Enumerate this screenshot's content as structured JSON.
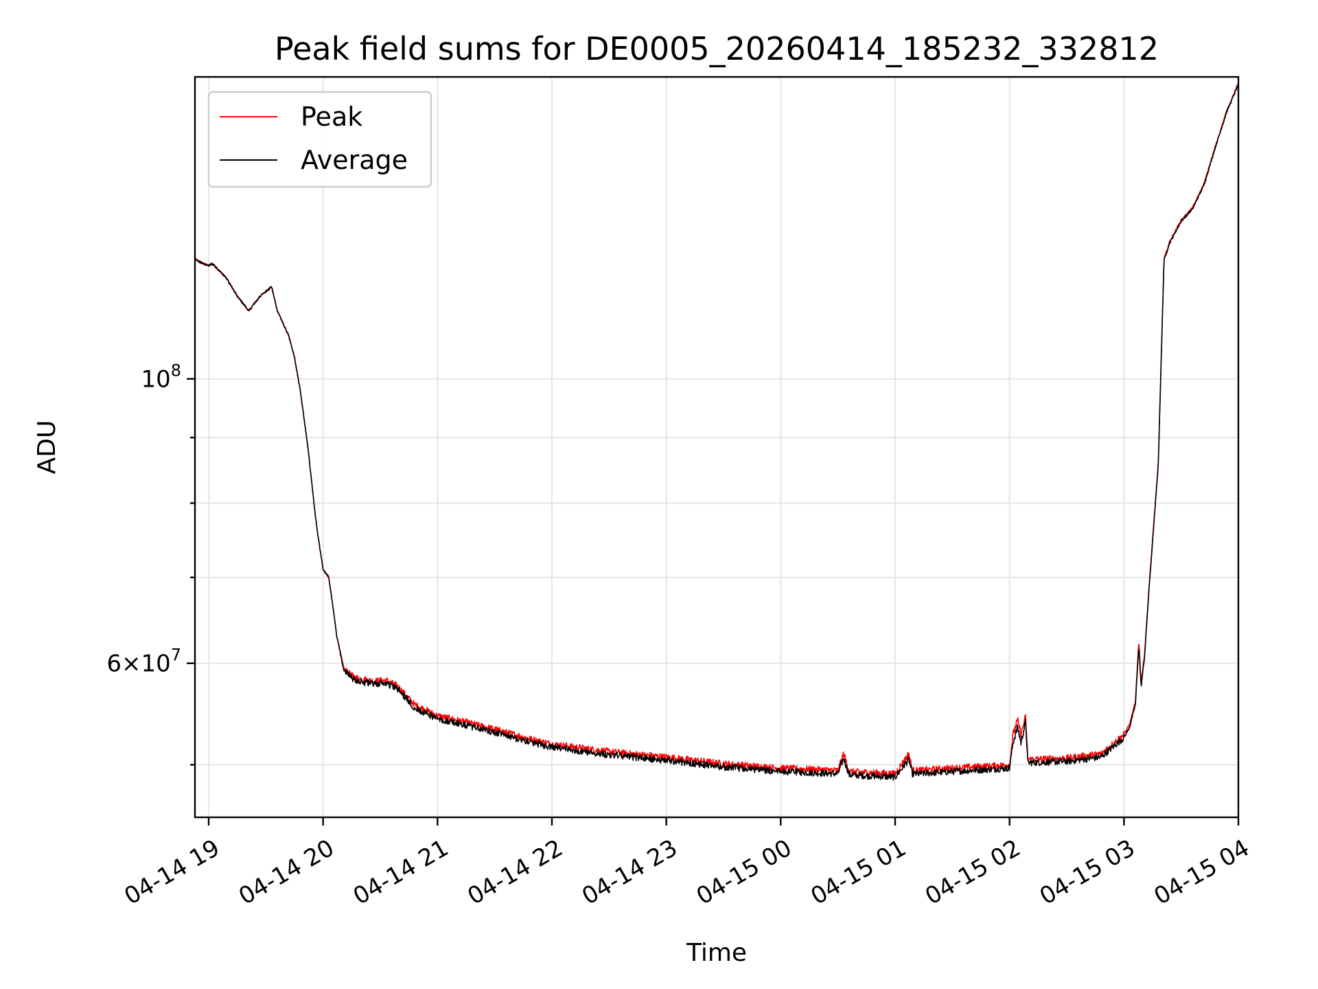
{
  "chart_data": {
    "type": "line",
    "title": "Peak field sums for DE0005_20260414_185232_332812",
    "xlabel": "Time",
    "ylabel": "ADU",
    "yscale": "log",
    "ylim": [
      45500000,
      172000000
    ],
    "xlim_hours": [
      -0.12,
      9.0
    ],
    "grid": true,
    "legend_position": "upper-left",
    "x_ticks": [
      {
        "value": 0,
        "label": "04-14 19"
      },
      {
        "value": 1,
        "label": "04-14 20"
      },
      {
        "value": 2,
        "label": "04-14 21"
      },
      {
        "value": 3,
        "label": "04-14 22"
      },
      {
        "value": 4,
        "label": "04-14 23"
      },
      {
        "value": 5,
        "label": "04-15 00"
      },
      {
        "value": 6,
        "label": "04-15 01"
      },
      {
        "value": 7,
        "label": "04-15 02"
      },
      {
        "value": 8,
        "label": "04-15 03"
      },
      {
        "value": 9,
        "label": "04-15 04"
      }
    ],
    "y_major_ticks": [
      {
        "value": 60000000,
        "base": "6",
        "label_mid": "×10",
        "exp": "7"
      },
      {
        "value": 100000000,
        "base": "",
        "label_mid": "10",
        "exp": "8"
      }
    ],
    "y_minor_ticks": [
      50000000,
      70000000,
      80000000,
      90000000
    ],
    "series": [
      {
        "name": "Peak",
        "color": "#ff0000",
        "x_hours": [
          -0.12,
          -0.05,
          0.0,
          0.03,
          0.15,
          0.25,
          0.35,
          0.45,
          0.55,
          0.6,
          0.64,
          0.7,
          0.75,
          0.8,
          0.87,
          0.92,
          0.95,
          1.0,
          1.05,
          1.08,
          1.12,
          1.18,
          1.22,
          1.27,
          1.35,
          1.45,
          1.55,
          1.65,
          1.72,
          1.8,
          2.0,
          2.2,
          2.5,
          2.8,
          3.0,
          3.5,
          4.0,
          4.5,
          5.0,
          5.5,
          5.55,
          5.6,
          6.0,
          6.12,
          6.15,
          6.2,
          6.5,
          7.0,
          7.03,
          7.07,
          7.1,
          7.14,
          7.16,
          7.2,
          7.5,
          7.8,
          8.0,
          8.05,
          8.1,
          8.13,
          8.15,
          8.18,
          8.22,
          8.3,
          8.35,
          8.4,
          8.5,
          8.6,
          8.7,
          8.8,
          8.9,
          9.0
        ],
        "values": [
          124000000,
          123000000,
          122500000,
          123000000,
          120000000,
          116000000,
          113000000,
          116000000,
          118000000,
          113000000,
          111000000,
          108000000,
          104000000,
          98000000,
          88000000,
          80000000,
          76000000,
          71000000,
          70000000,
          67000000,
          63000000,
          59500000,
          59000000,
          58500000,
          58300000,
          58100000,
          58200000,
          57600000,
          56700000,
          55700000,
          54600000,
          54100000,
          53300000,
          52400000,
          51900000,
          51200000,
          50700000,
          50100000,
          49700000,
          49500000,
          51000000,
          49400000,
          49200000,
          51000000,
          49500000,
          49500000,
          49700000,
          50000000,
          52800000,
          54200000,
          52800000,
          54500000,
          50500000,
          50500000,
          50600000,
          51000000,
          52800000,
          53800000,
          56000000,
          62500000,
          58000000,
          61000000,
          69000000,
          86000000,
          124000000,
          128000000,
          133000000,
          136000000,
          142000000,
          152000000,
          162000000,
          170000000
        ]
      },
      {
        "name": "Average",
        "color": "#000000",
        "x_hours": [
          -0.12,
          -0.05,
          0.0,
          0.03,
          0.15,
          0.25,
          0.35,
          0.45,
          0.55,
          0.6,
          0.64,
          0.7,
          0.75,
          0.8,
          0.87,
          0.92,
          0.95,
          1.0,
          1.05,
          1.08,
          1.12,
          1.18,
          1.22,
          1.27,
          1.35,
          1.45,
          1.55,
          1.65,
          1.72,
          1.8,
          2.0,
          2.2,
          2.5,
          2.8,
          3.0,
          3.5,
          4.0,
          4.5,
          5.0,
          5.5,
          5.55,
          5.6,
          6.0,
          6.12,
          6.15,
          6.2,
          6.5,
          7.0,
          7.03,
          7.07,
          7.1,
          7.14,
          7.16,
          7.2,
          7.5,
          7.8,
          8.0,
          8.05,
          8.1,
          8.13,
          8.15,
          8.18,
          8.22,
          8.3,
          8.35,
          8.4,
          8.5,
          8.6,
          8.7,
          8.8,
          8.9,
          9.0
        ],
        "values": [
          124000000,
          123000000,
          122500000,
          123000000,
          120000000,
          116000000,
          113000000,
          116000000,
          118000000,
          113000000,
          111000000,
          108000000,
          104000000,
          98000000,
          88000000,
          80000000,
          76000000,
          71000000,
          70000000,
          67000000,
          63000000,
          59300000,
          58800000,
          58300000,
          58000000,
          57800000,
          57900000,
          57300000,
          56400000,
          55400000,
          54300000,
          53800000,
          53000000,
          52100000,
          51600000,
          50900000,
          50400000,
          49800000,
          49400000,
          49200000,
          50600000,
          49100000,
          48900000,
          50500000,
          49200000,
          49200000,
          49400000,
          49700000,
          52000000,
          53500000,
          52000000,
          54000000,
          50200000,
          50200000,
          50300000,
          50700000,
          52500000,
          53500000,
          55700000,
          62000000,
          57500000,
          60700000,
          68700000,
          85700000,
          123700000,
          127700000,
          132700000,
          135700000,
          141700000,
          151700000,
          161700000,
          169700000
        ]
      }
    ]
  }
}
